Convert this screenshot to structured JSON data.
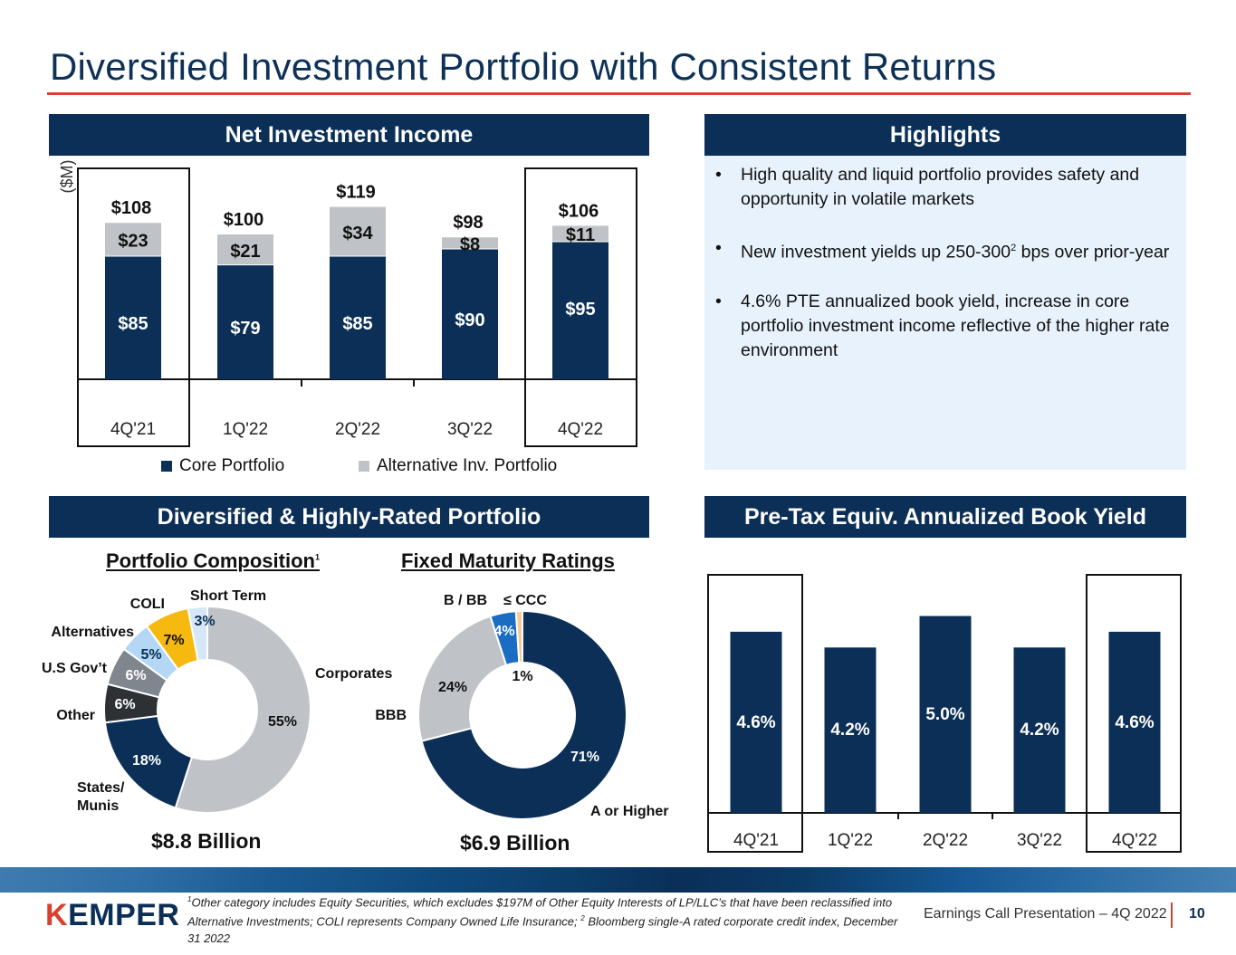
{
  "page": {
    "title": "Diversified Investment Portfolio with Consistent Returns",
    "presentation_label": "Earnings Call Presentation – 4Q 2022",
    "page_number": "10",
    "logo": "KEMPER"
  },
  "sections": {
    "nii": "Net Investment Income",
    "highlights": "Highlights",
    "portfolio": "Diversified & Highly-Rated Portfolio",
    "yield": "Pre-Tax Equiv. Annualized Book Yield"
  },
  "highlights": [
    {
      "text": "High quality and liquid portfolio provides safety and opportunity in volatile markets",
      "sup": ""
    },
    {
      "text_before": "New investment yields up 250-300",
      "sup": "2",
      "text_after": " bps over prior-year"
    },
    {
      "text": "4.6% PTE annualized book yield, increase in core portfolio investment income reflective of the higher rate environment",
      "sup": ""
    }
  ],
  "colors": {
    "navy": "#0b2f56",
    "gray": "#bfc3c8",
    "accent_red": "#d9402f",
    "highlight_bg": "#e8f2fc"
  },
  "chart_data": [
    {
      "id": "net-investment-income",
      "type": "bar",
      "stacked": true,
      "title": "Net Investment Income",
      "ylabel": "($M)",
      "categories": [
        "4Q'21",
        "1Q'22",
        "2Q'22",
        "3Q'22",
        "4Q'22"
      ],
      "series": [
        {
          "name": "Core Portfolio",
          "color": "#0b2f56",
          "values": [
            85,
            79,
            85,
            90,
            95
          ],
          "labels": [
            "$85",
            "$79",
            "$85",
            "$90",
            "$95"
          ]
        },
        {
          "name": "Alternative Inv. Portfolio",
          "color": "#bfc3c8",
          "values": [
            23,
            21,
            34,
            8,
            11
          ],
          "labels": [
            "$23",
            "$21",
            "$34",
            "$8",
            "$11"
          ]
        }
      ],
      "totals": [
        108,
        100,
        119,
        98,
        106
      ],
      "total_labels": [
        "$108",
        "$100",
        "$119",
        "$98",
        "$106"
      ],
      "highlighted": [
        "4Q'21",
        "4Q'22"
      ],
      "legend": "bottom",
      "ylim": [
        0,
        130
      ]
    },
    {
      "id": "portfolio-composition",
      "type": "pie",
      "donut": true,
      "title": "Portfolio Composition",
      "title_sup": "1",
      "total_label": "$8.8 Billion",
      "slices": [
        {
          "label": "Corporates",
          "value": 55,
          "display": "55%",
          "color": "#bfc3c8",
          "text_color": "#111111"
        },
        {
          "label": "States/ Munis",
          "value": 18,
          "display": "18%",
          "color": "#0b2f56",
          "text_color": "#ffffff"
        },
        {
          "label": "Other",
          "value": 6,
          "display": "6%",
          "color": "#2e3134",
          "text_color": "#ffffff"
        },
        {
          "label": "U.S Gov’t",
          "value": 6,
          "display": "6%",
          "color": "#80868d",
          "text_color": "#ffffff"
        },
        {
          "label": "Alternatives",
          "value": 5,
          "display": "5%",
          "color": "#b3d7f5",
          "text_color": "#0b2f56"
        },
        {
          "label": "COLI",
          "value": 7,
          "display": "7%",
          "color": "#f5b90f",
          "text_color": "#111111"
        },
        {
          "label": "Short Term",
          "value": 3,
          "display": "3%",
          "color": "#d6e8f8",
          "text_color": "#0b2f56"
        }
      ]
    },
    {
      "id": "fixed-maturity-ratings",
      "type": "pie",
      "donut": true,
      "title": "Fixed Maturity Ratings",
      "total_label": "$6.9 Billion",
      "slices": [
        {
          "label": "A or Higher",
          "value": 71,
          "display": "71%",
          "color": "#0b2f56",
          "text_color": "#ffffff"
        },
        {
          "label": "BBB",
          "value": 24,
          "display": "24%",
          "color": "#bfc3c8",
          "text_color": "#111111"
        },
        {
          "label": "B / BB",
          "value": 4,
          "display": "4%",
          "color": "#1a6dc2",
          "text_color": "#ffffff"
        },
        {
          "label": "≤ CCC",
          "value": 1,
          "display": "1%",
          "color": "#f7c9a0",
          "text_color": "#111111"
        }
      ]
    },
    {
      "id": "book-yield",
      "type": "bar",
      "title": "Pre-Tax Equiv. Annualized Book Yield",
      "categories": [
        "4Q'21",
        "1Q'22",
        "2Q'22",
        "3Q'22",
        "4Q'22"
      ],
      "values": [
        4.6,
        4.2,
        5.0,
        4.2,
        4.6
      ],
      "labels": [
        "4.6%",
        "4.2%",
        "5.0%",
        "4.2%",
        "4.6%"
      ],
      "highlighted": [
        "4Q'21",
        "4Q'22"
      ],
      "ylim": [
        0,
        6
      ]
    }
  ],
  "footnote": {
    "sup1": "1",
    "part1": "Other category includes Equity Securities, which excludes $197M of Other Equity Interests of LP/LLC’s that have been reclassified into Alternative Investments; COLI represents Company Owned Life Insurance; ",
    "sup2": "2",
    "part2": " Bloomberg single-A rated corporate credit index, December 31 2022"
  }
}
